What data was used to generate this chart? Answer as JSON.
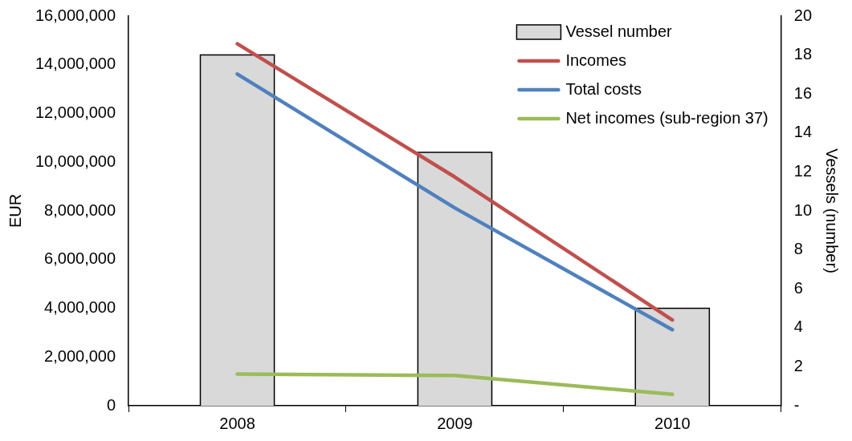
{
  "chart_data": {
    "type": "bar",
    "categories": [
      "2008",
      "2009",
      "2010"
    ],
    "ylabel": "EUR",
    "y2label": "Vessels (number)",
    "series": [
      {
        "name": "Vessel number",
        "axis": "y2",
        "color": "#d9d9d9",
        "values": [
          18,
          13,
          5
        ]
      },
      {
        "name": "Incomes",
        "type": "line",
        "color": "#c0504d",
        "values": [
          14860000,
          9390000,
          3520000
        ]
      },
      {
        "name": "Total costs",
        "type": "line",
        "color": "#4f81bd",
        "values": [
          13620000,
          8120000,
          3120000
        ]
      },
      {
        "name": "Net incomes (sub-region 37)",
        "type": "line",
        "color": "#9bbb59",
        "values": [
          1300000,
          1240000,
          470000
        ]
      }
    ],
    "ylim": [
      0,
      16000000
    ],
    "yticks": [
      {
        "value": 0,
        "label": "0"
      },
      {
        "value": 2000000,
        "label": "2,000,000"
      },
      {
        "value": 4000000,
        "label": "4,000,000"
      },
      {
        "value": 6000000,
        "label": "6,000,000"
      },
      {
        "value": 8000000,
        "label": "8,000,000"
      },
      {
        "value": 10000000,
        "label": "10,000,000"
      },
      {
        "value": 12000000,
        "label": "12,000,000"
      },
      {
        "value": 14000000,
        "label": "14,000,000"
      },
      {
        "value": 16000000,
        "label": "16,000,000"
      }
    ],
    "y2lim": [
      0,
      20
    ],
    "y2ticks": [
      {
        "value": 0,
        "label": "-"
      },
      2,
      4,
      6,
      8,
      10,
      12,
      14,
      16,
      18,
      20
    ],
    "grid": false,
    "legend": "top right",
    "marker": "none"
  }
}
